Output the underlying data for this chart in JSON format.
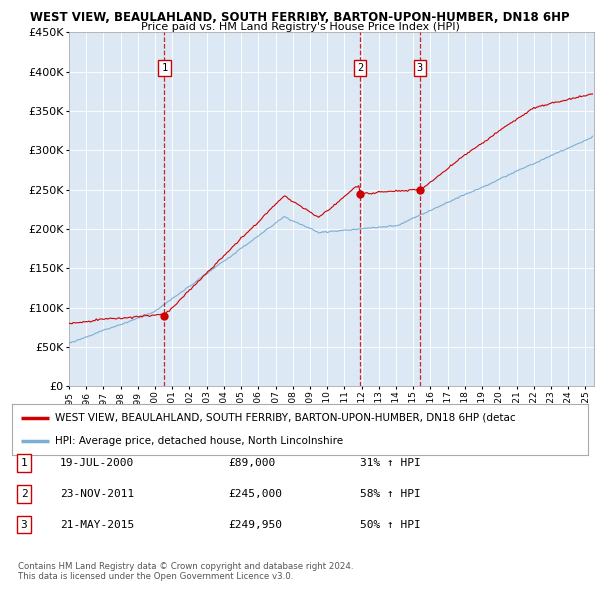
{
  "title1": "WEST VIEW, BEAULAHLAND, SOUTH FERRIBY, BARTON-UPON-HUMBER, DN18 6HP",
  "title2": "Price paid vs. HM Land Registry's House Price Index (HPI)",
  "bg_color": "#dce9f5",
  "ylim": [
    0,
    450000
  ],
  "yticks": [
    0,
    50000,
    100000,
    150000,
    200000,
    250000,
    300000,
    350000,
    400000,
    450000
  ],
  "xlim_start": 1995.0,
  "xlim_end": 2025.5,
  "sale_dates": [
    2000.54,
    2011.9,
    2015.38
  ],
  "sale_prices": [
    89000,
    245000,
    249950
  ],
  "sale_labels": [
    "1",
    "2",
    "3"
  ],
  "legend_property": "WEST VIEW, BEAULAHLAND, SOUTH FERRIBY, BARTON-UPON-HUMBER, DN18 6HP (detac",
  "legend_hpi": "HPI: Average price, detached house, North Lincolnshire",
  "table_rows": [
    [
      "1",
      "19-JUL-2000",
      "£89,000",
      "31% ↑ HPI"
    ],
    [
      "2",
      "23-NOV-2011",
      "£245,000",
      "58% ↑ HPI"
    ],
    [
      "3",
      "21-MAY-2015",
      "£249,950",
      "50% ↑ HPI"
    ]
  ],
  "footnote1": "Contains HM Land Registry data © Crown copyright and database right 2024.",
  "footnote2": "This data is licensed under the Open Government Licence v3.0.",
  "property_color": "#cc0000",
  "hpi_color": "#7bafd4",
  "sale_marker_color": "#cc0000",
  "dashed_line_color": "#cc0000"
}
